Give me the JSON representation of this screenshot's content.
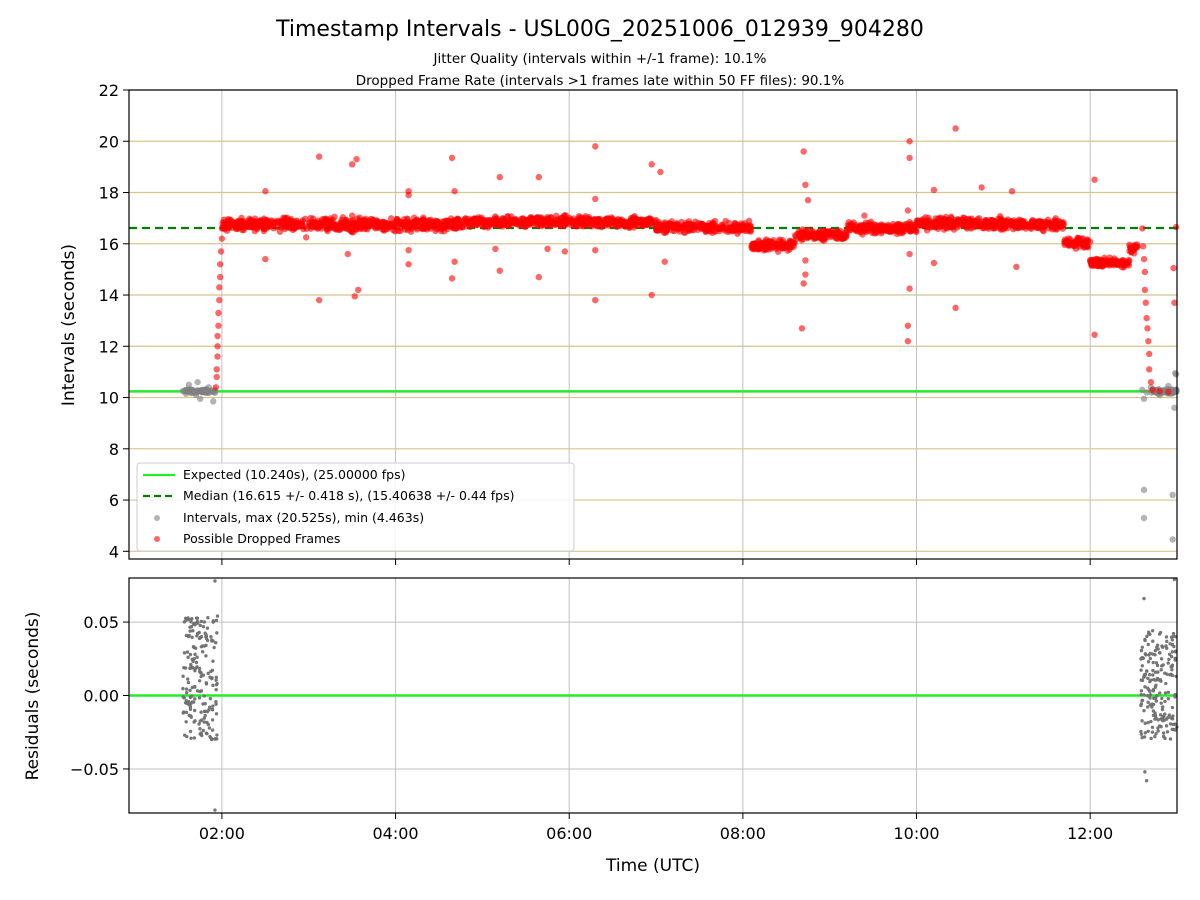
{
  "chart_data": {
    "type": "scatter",
    "title": "Timestamp Intervals - USL00G_20251006_012939_904280",
    "subtitles": [
      "Jitter Quality (intervals within +/-1 frame): 10.1%",
      "Dropped Frame Rate (intervals >1 frames late within 50 FF files): 90.1%"
    ],
    "x_tick_labels": [
      "02:00",
      "04:00",
      "06:00",
      "08:00",
      "10:00",
      "12:00"
    ],
    "x_ticks_hours": [
      2,
      4,
      6,
      8,
      10,
      12
    ],
    "xlim_hours": [
      0.93,
      13.0
    ],
    "xlabel": "Time (UTC)",
    "top_panel": {
      "ylabel": "Intervals (seconds)",
      "ylim": [
        3.7,
        22
      ],
      "y_ticks": [
        4,
        6,
        8,
        10,
        12,
        14,
        16,
        18,
        20,
        22
      ],
      "expected_line": 10.24,
      "median_line": 16.615,
      "legend": [
        "Expected (10.240s), (25.00000 fps)",
        "Median (16.615 +/- 0.418 s), (15.40638 +/- 0.44 fps)",
        "Intervals, max (20.525s), min (4.463s)",
        "Possible Dropped Frames"
      ],
      "normal_points": [
        [
          1.55,
          10.25
        ],
        [
          1.6,
          10.3
        ],
        [
          1.62,
          10.5
        ],
        [
          1.65,
          10.2
        ],
        [
          1.7,
          10.1
        ],
        [
          1.72,
          10.6
        ],
        [
          1.75,
          9.95
        ],
        [
          1.78,
          10.3
        ],
        [
          1.82,
          10.2
        ],
        [
          1.85,
          10.4
        ],
        [
          1.88,
          10.25
        ],
        [
          1.9,
          9.85
        ],
        [
          1.92,
          10.3
        ],
        [
          12.6,
          10.3
        ],
        [
          12.62,
          9.95
        ],
        [
          12.65,
          10.2
        ],
        [
          12.7,
          10.4
        ],
        [
          12.75,
          10.25
        ],
        [
          12.8,
          10.1
        ],
        [
          12.85,
          10.3
        ],
        [
          12.88,
          10.2
        ],
        [
          12.9,
          10.45
        ],
        [
          12.93,
          10.3
        ],
        [
          12.96,
          10.2
        ],
        [
          12.98,
          10.95
        ],
        [
          12.99,
          10.3
        ],
        [
          12.62,
          6.4
        ],
        [
          12.62,
          5.3
        ],
        [
          12.95,
          6.2
        ],
        [
          12.95,
          4.463
        ],
        [
          12.97,
          9.6
        ],
        [
          12.99,
          10.9
        ]
      ],
      "dropped_core": [
        {
          "from": 2.0,
          "to": 4.8,
          "value": 16.75,
          "jitter": 0.35
        },
        {
          "from": 4.8,
          "to": 7.0,
          "value": 16.85,
          "jitter": 0.3
        },
        {
          "from": 7.0,
          "to": 8.1,
          "value": 16.65,
          "jitter": 0.3
        },
        {
          "from": 8.1,
          "to": 8.6,
          "value": 15.95,
          "jitter": 0.3
        },
        {
          "from": 8.6,
          "to": 9.2,
          "value": 16.35,
          "jitter": 0.3
        },
        {
          "from": 9.2,
          "to": 10.0,
          "value": 16.6,
          "jitter": 0.3
        },
        {
          "from": 10.0,
          "to": 11.0,
          "value": 16.8,
          "jitter": 0.35
        },
        {
          "from": 11.0,
          "to": 11.7,
          "value": 16.75,
          "jitter": 0.3
        },
        {
          "from": 11.7,
          "to": 12.0,
          "value": 16.05,
          "jitter": 0.3
        },
        {
          "from": 12.0,
          "to": 12.45,
          "value": 15.25,
          "jitter": 0.25
        },
        {
          "from": 12.45,
          "to": 12.55,
          "value": 15.8,
          "jitter": 0.3
        }
      ],
      "dropped_ramp": [
        [
          1.93,
          10.4
        ],
        [
          1.94,
          10.8
        ],
        [
          1.94,
          11.1
        ],
        [
          1.95,
          11.6
        ],
        [
          1.95,
          12.0
        ],
        [
          1.95,
          12.4
        ],
        [
          1.96,
          12.8
        ],
        [
          1.96,
          13.3
        ],
        [
          1.97,
          13.8
        ],
        [
          1.97,
          14.3
        ],
        [
          1.98,
          14.7
        ],
        [
          1.98,
          15.2
        ],
        [
          1.99,
          15.7
        ],
        [
          2.0,
          16.2
        ],
        [
          2.0,
          16.6
        ],
        [
          12.6,
          16.6
        ],
        [
          12.61,
          15.9
        ],
        [
          12.62,
          15.4
        ],
        [
          12.63,
          14.9
        ],
        [
          12.63,
          14.2
        ],
        [
          12.64,
          13.7
        ],
        [
          12.65,
          13.1
        ],
        [
          12.66,
          12.7
        ],
        [
          12.67,
          12.2
        ],
        [
          12.68,
          11.7
        ],
        [
          12.68,
          11.1
        ],
        [
          12.7,
          10.6
        ],
        [
          12.72,
          10.3
        ],
        [
          12.8,
          10.25
        ],
        [
          12.9,
          10.22
        ]
      ],
      "dropped_outliers": [
        [
          2.5,
          18.05
        ],
        [
          2.5,
          15.4
        ],
        [
          2.97,
          16.25
        ],
        [
          3.12,
          19.4
        ],
        [
          3.12,
          13.8
        ],
        [
          3.45,
          15.6
        ],
        [
          3.5,
          19.1
        ],
        [
          3.55,
          19.3
        ],
        [
          3.5,
          17.1
        ],
        [
          3.53,
          13.95
        ],
        [
          3.57,
          14.2
        ],
        [
          4.15,
          18.05
        ],
        [
          4.15,
          17.9
        ],
        [
          4.15,
          15.2
        ],
        [
          4.15,
          15.75
        ],
        [
          4.65,
          19.35
        ],
        [
          4.68,
          18.05
        ],
        [
          4.68,
          15.3
        ],
        [
          4.65,
          14.65
        ],
        [
          5.15,
          15.8
        ],
        [
          5.2,
          18.6
        ],
        [
          5.2,
          14.95
        ],
        [
          5.65,
          18.6
        ],
        [
          5.65,
          14.7
        ],
        [
          5.75,
          15.8
        ],
        [
          5.95,
          15.7
        ],
        [
          6.3,
          19.8
        ],
        [
          6.3,
          17.75
        ],
        [
          6.3,
          15.75
        ],
        [
          6.3,
          13.8
        ],
        [
          6.95,
          19.1
        ],
        [
          7.05,
          18.8
        ],
        [
          7.1,
          15.3
        ],
        [
          6.95,
          14.0
        ],
        [
          8.7,
          19.6
        ],
        [
          8.72,
          18.3
        ],
        [
          8.75,
          17.7
        ],
        [
          8.72,
          15.35
        ],
        [
          8.72,
          14.8
        ],
        [
          8.7,
          14.45
        ],
        [
          8.68,
          12.7
        ],
        [
          9.4,
          17.1
        ],
        [
          9.9,
          17.3
        ],
        [
          9.92,
          15.6
        ],
        [
          9.92,
          14.25
        ],
        [
          9.9,
          12.8
        ],
        [
          9.9,
          12.2
        ],
        [
          9.92,
          20.0
        ],
        [
          9.92,
          19.35
        ],
        [
          10.2,
          18.1
        ],
        [
          10.45,
          20.5
        ],
        [
          10.2,
          15.25
        ],
        [
          10.45,
          13.5
        ],
        [
          10.75,
          18.2
        ],
        [
          11.1,
          18.05
        ],
        [
          11.15,
          15.1
        ],
        [
          12.05,
          18.5
        ],
        [
          12.05,
          12.45
        ],
        [
          12.96,
          15.05
        ],
        [
          12.97,
          13.7
        ],
        [
          12.99,
          16.65
        ]
      ]
    },
    "bottom_panel": {
      "ylabel": "Residuals (seconds)",
      "ylim": [
        -0.08,
        0.08
      ],
      "y_ticks": [
        0.05,
        0.0,
        -0.05
      ],
      "y_tick_labels": [
        "0.05",
        "0.00",
        "−0.05"
      ],
      "zero_line": 0.0,
      "clusters": [
        {
          "from": 1.55,
          "to": 1.95,
          "min": -0.03,
          "max": 0.055
        },
        {
          "from": 12.58,
          "to": 13.0,
          "min": -0.03,
          "max": 0.045
        }
      ],
      "outliers": [
        [
          1.92,
          0.078
        ],
        [
          1.92,
          -0.078
        ],
        [
          1.9,
          0.05
        ],
        [
          12.62,
          0.066
        ],
        [
          12.63,
          -0.052
        ],
        [
          12.65,
          -0.058
        ],
        [
          12.97,
          0.079
        ]
      ]
    }
  },
  "colors": {
    "expected": "#22ee22",
    "median": "#008000",
    "dropped": "#ff0000",
    "normal": "#808080",
    "hgrid": "#d8c48a",
    "vgrid": "#c0c0c0"
  }
}
